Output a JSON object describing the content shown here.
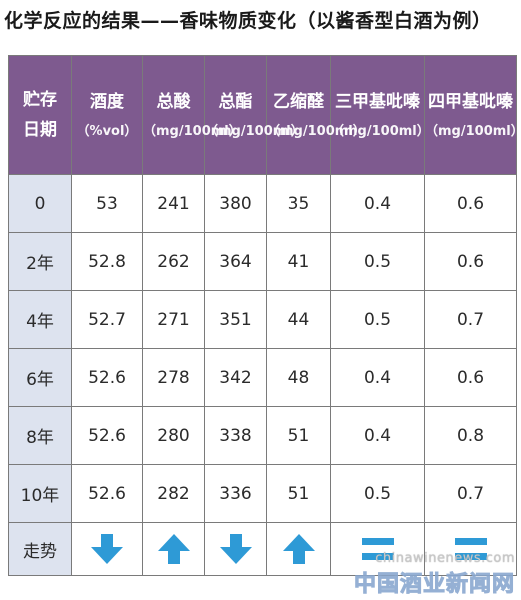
{
  "title": "化学反应的结果——香味物质变化（以酱香型白酒为例）",
  "table": {
    "headers": [
      {
        "main": "贮存",
        "sub": "日期"
      },
      {
        "main": "酒度",
        "sub": "（%vol）"
      },
      {
        "main": "总酸",
        "sub": "（mg/100ml）"
      },
      {
        "main": "总酯",
        "sub": "（mg/100ml）"
      },
      {
        "main": "乙缩醛",
        "sub": "（mg/100ml）"
      },
      {
        "main": "三甲基吡嗪",
        "sub": "（mg/100ml）"
      },
      {
        "main": "四甲基吡嗪",
        "sub": "（mg/100ml）"
      }
    ],
    "rows": [
      [
        "0",
        "53",
        "241",
        "380",
        "35",
        "0.4",
        "0.6"
      ],
      [
        "2年",
        "52.8",
        "262",
        "364",
        "41",
        "0.5",
        "0.6"
      ],
      [
        "4年",
        "52.7",
        "271",
        "351",
        "44",
        "0.5",
        "0.7"
      ],
      [
        "6年",
        "52.6",
        "278",
        "342",
        "48",
        "0.4",
        "0.6"
      ],
      [
        "8年",
        "52.6",
        "280",
        "338",
        "51",
        "0.4",
        "0.8"
      ],
      [
        "10年",
        "52.6",
        "282",
        "336",
        "51",
        "0.5",
        "0.7"
      ]
    ],
    "trend_label": "走势",
    "trends": [
      "down",
      "up",
      "down",
      "up",
      "equal",
      "equal"
    ]
  },
  "colors": {
    "header_bg": "#7e5a8f",
    "period_bg": "#dde3ef",
    "arrow": "#2e9ad6"
  },
  "watermark": {
    "url": "chinawinenews.com",
    "name": "中国酒业新闻网"
  }
}
